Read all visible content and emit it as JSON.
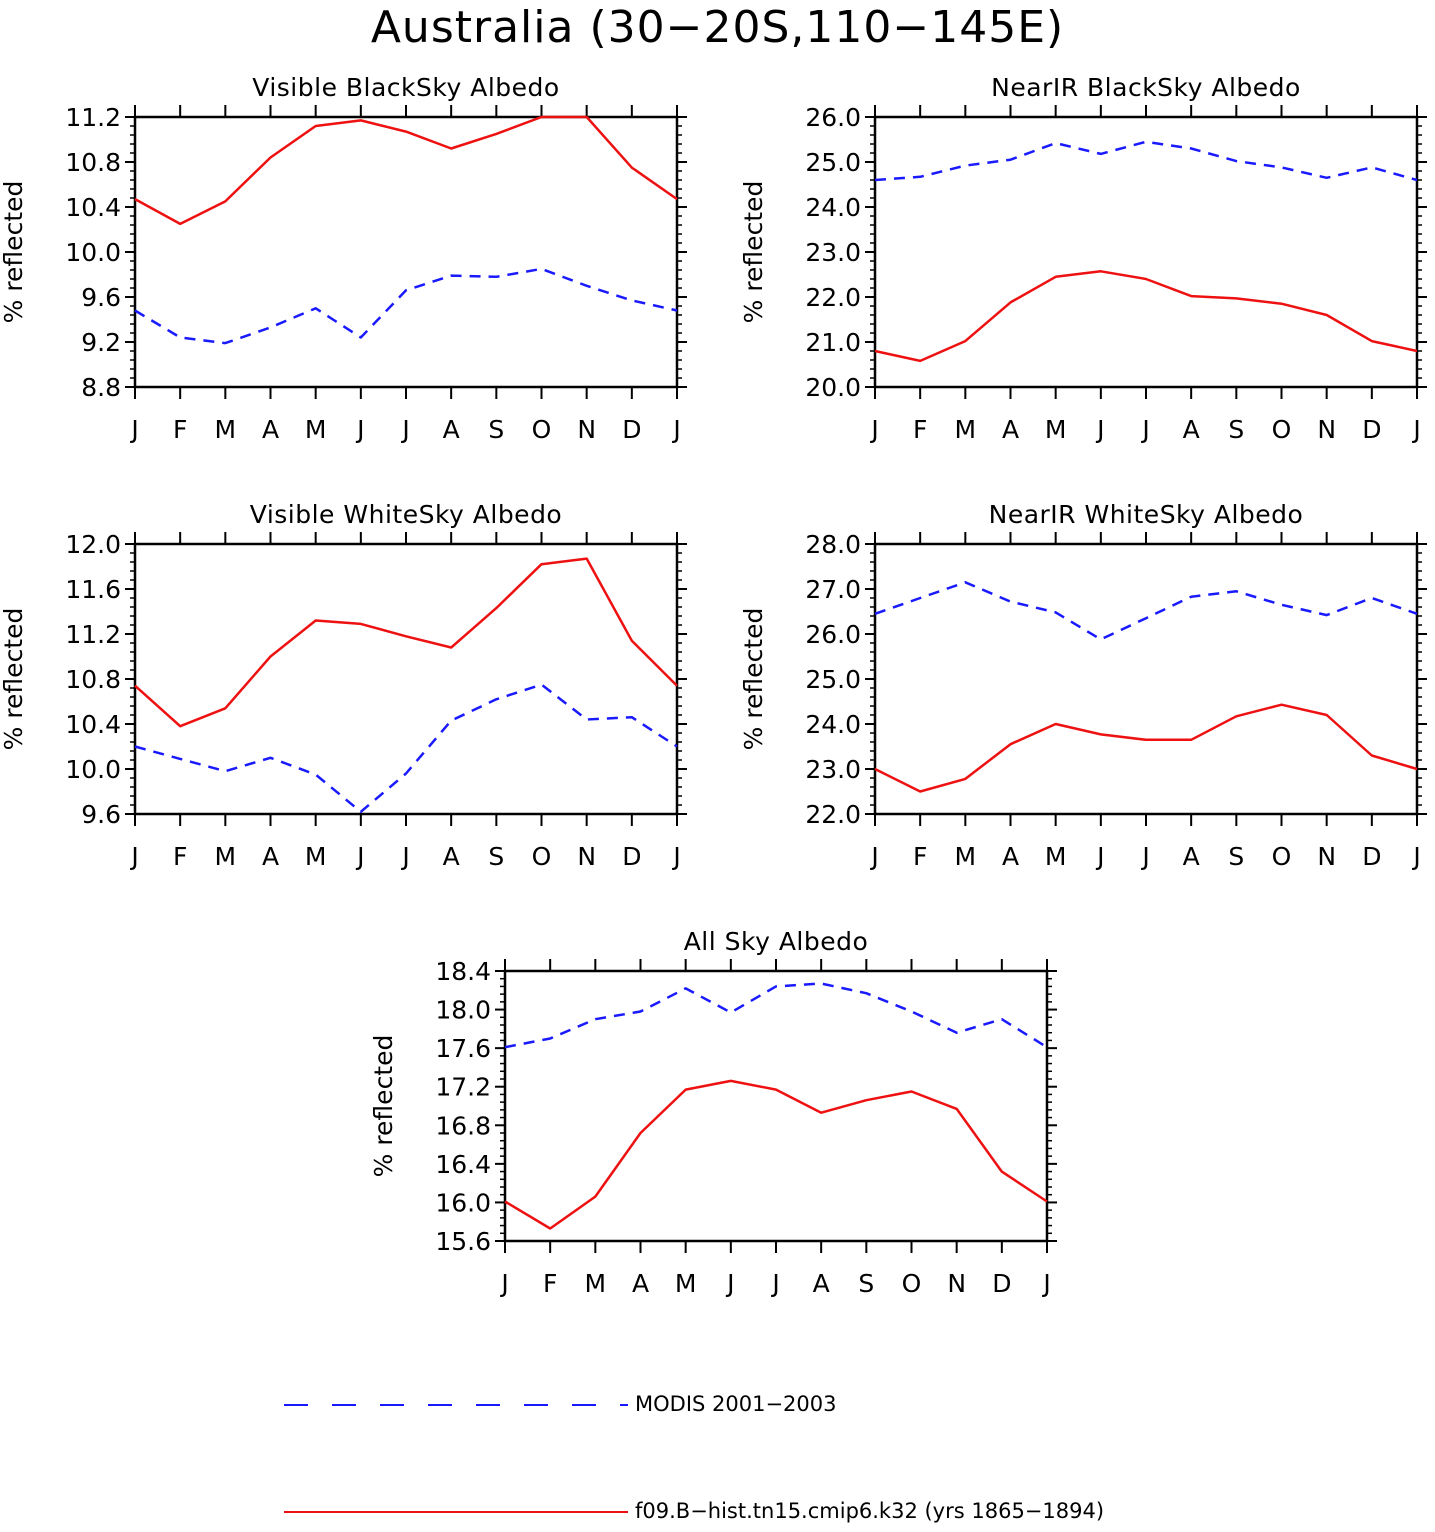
{
  "title": "Australia (30−20S,110−145E)",
  "months": [
    "J",
    "F",
    "M",
    "A",
    "M",
    "J",
    "J",
    "A",
    "S",
    "O",
    "N",
    "D",
    "J"
  ],
  "ylabel": "% reflected",
  "colors": {
    "modis": "#1a1aff",
    "model": "#ee1111"
  },
  "legend": {
    "modis_label": "MODIS 2001−2003",
    "model_label": "f09.B−hist.tn15.cmip6.k32 (yrs 1865−1894)"
  },
  "chart_data": [
    {
      "type": "line",
      "title": "Visible BlackSky Albedo",
      "ylabel": "% reflected",
      "ylim": [
        8.8,
        11.2
      ],
      "yticks": [
        "8.8",
        "9.2",
        "9.6",
        "10.0",
        "10.4",
        "10.8",
        "11.2"
      ],
      "categories": [
        "J",
        "F",
        "M",
        "A",
        "M",
        "J",
        "J",
        "A",
        "S",
        "O",
        "N",
        "D",
        "J"
      ],
      "series": [
        {
          "name": "MODIS 2001−2003",
          "style": "dashed",
          "values": [
            9.48,
            9.24,
            9.19,
            9.33,
            9.5,
            9.24,
            9.66,
            9.79,
            9.78,
            9.85,
            9.7,
            9.57,
            9.48
          ]
        },
        {
          "name": "f09.B−hist.tn15.cmip6.k32 (yrs 1865−1894)",
          "style": "solid",
          "values": [
            10.47,
            10.25,
            10.45,
            10.84,
            11.12,
            11.17,
            11.07,
            10.92,
            11.05,
            11.2,
            11.2,
            10.75,
            10.47
          ]
        }
      ]
    },
    {
      "type": "line",
      "title": "NearIR BlackSky Albedo",
      "ylabel": "% reflected",
      "ylim": [
        20.0,
        26.0
      ],
      "yticks": [
        "20.0",
        "21.0",
        "22.0",
        "23.0",
        "24.0",
        "25.0",
        "26.0"
      ],
      "categories": [
        "J",
        "F",
        "M",
        "A",
        "M",
        "J",
        "J",
        "A",
        "S",
        "O",
        "N",
        "D",
        "J"
      ],
      "series": [
        {
          "name": "MODIS 2001−2003",
          "style": "dashed",
          "values": [
            24.6,
            24.67,
            24.92,
            25.05,
            25.42,
            25.18,
            25.45,
            25.3,
            25.02,
            24.88,
            24.65,
            24.88,
            24.6
          ]
        },
        {
          "name": "f09.B−hist.tn15.cmip6.k32 (yrs 1865−1894)",
          "style": "solid",
          "values": [
            20.8,
            20.58,
            21.02,
            21.88,
            22.45,
            22.57,
            22.4,
            22.02,
            21.97,
            21.85,
            21.6,
            21.02,
            20.8
          ]
        }
      ]
    },
    {
      "type": "line",
      "title": "Visible WhiteSky Albedo",
      "ylabel": "% reflected",
      "ylim": [
        9.6,
        12.0
      ],
      "yticks": [
        "9.6",
        "10.0",
        "10.4",
        "10.8",
        "11.2",
        "11.6",
        "12.0"
      ],
      "categories": [
        "J",
        "F",
        "M",
        "A",
        "M",
        "J",
        "J",
        "A",
        "S",
        "O",
        "N",
        "D",
        "J"
      ],
      "series": [
        {
          "name": "MODIS 2001−2003",
          "style": "dashed",
          "values": [
            10.2,
            10.09,
            9.98,
            10.1,
            9.95,
            9.62,
            9.96,
            10.43,
            10.62,
            10.75,
            10.44,
            10.46,
            10.2
          ]
        },
        {
          "name": "f09.B−hist.tn15.cmip6.k32 (yrs 1865−1894)",
          "style": "solid",
          "values": [
            10.74,
            10.38,
            10.54,
            11.0,
            11.32,
            11.29,
            11.18,
            11.08,
            11.43,
            11.82,
            11.87,
            11.14,
            10.74
          ]
        }
      ]
    },
    {
      "type": "line",
      "title": "NearIR WhiteSky Albedo",
      "ylabel": "% reflected",
      "ylim": [
        22.0,
        28.0
      ],
      "yticks": [
        "22.0",
        "23.0",
        "24.0",
        "25.0",
        "26.0",
        "27.0",
        "28.0"
      ],
      "categories": [
        "J",
        "F",
        "M",
        "A",
        "M",
        "J",
        "J",
        "A",
        "S",
        "O",
        "N",
        "D",
        "J"
      ],
      "series": [
        {
          "name": "MODIS 2001−2003",
          "style": "dashed",
          "values": [
            26.45,
            26.8,
            27.15,
            26.72,
            26.48,
            25.88,
            26.35,
            26.83,
            26.95,
            26.65,
            26.42,
            26.8,
            26.45
          ]
        },
        {
          "name": "f09.B−hist.tn15.cmip6.k32 (yrs 1865−1894)",
          "style": "solid",
          "values": [
            23.0,
            22.5,
            22.78,
            23.55,
            24.0,
            23.77,
            23.65,
            23.65,
            24.17,
            24.43,
            24.2,
            23.3,
            23.0
          ]
        }
      ]
    },
    {
      "type": "line",
      "title": "All Sky Albedo",
      "ylabel": "% reflected",
      "ylim": [
        15.6,
        18.4
      ],
      "yticks": [
        "15.6",
        "16.0",
        "16.4",
        "16.8",
        "17.2",
        "17.6",
        "18.0",
        "18.4"
      ],
      "categories": [
        "J",
        "F",
        "M",
        "A",
        "M",
        "J",
        "J",
        "A",
        "S",
        "O",
        "N",
        "D",
        "J"
      ],
      "series": [
        {
          "name": "MODIS 2001−2003",
          "style": "dashed",
          "values": [
            17.61,
            17.7,
            17.9,
            17.98,
            18.22,
            17.97,
            18.24,
            18.27,
            18.17,
            17.98,
            17.76,
            17.9,
            17.61
          ]
        },
        {
          "name": "f09.B−hist.tn15.cmip6.k32 (yrs 1865−1894)",
          "style": "solid",
          "values": [
            16.01,
            15.73,
            16.06,
            16.72,
            17.17,
            17.26,
            17.17,
            16.93,
            17.06,
            17.15,
            16.97,
            16.32,
            16.01
          ]
        }
      ]
    }
  ]
}
